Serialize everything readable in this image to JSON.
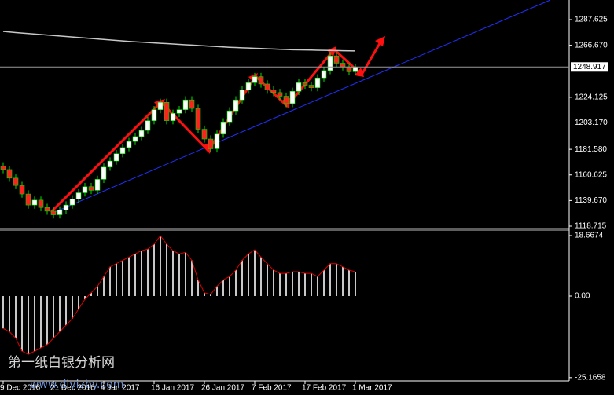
{
  "chart_data": [
    {
      "type": "candlestick",
      "categories": [
        "9 Dec 2016",
        null,
        null,
        null,
        null,
        null,
        null,
        null,
        "21 Dec 2016",
        null,
        null,
        null,
        null,
        null,
        null,
        null,
        "4 Jan 2017",
        null,
        null,
        null,
        null,
        null,
        null,
        null,
        "16 Jan 2017",
        null,
        null,
        null,
        null,
        null,
        null,
        null,
        "26 Jan 2017",
        null,
        null,
        null,
        null,
        null,
        null,
        null,
        "7 Feb 2017",
        null,
        null,
        null,
        null,
        null,
        null,
        null,
        "17 Feb 2017",
        null,
        null,
        null,
        null,
        null,
        null,
        null,
        "1 Mar 2017"
      ],
      "open": [
        1168,
        1165,
        1158,
        1152,
        1145,
        1136,
        1140,
        1134,
        1131,
        1128,
        1132,
        1136,
        1141,
        1146,
        1151,
        1148,
        1157,
        1167,
        1172,
        1178,
        1183,
        1188,
        1192,
        1197,
        1205,
        1214,
        1220,
        1205,
        1211,
        1214,
        1222,
        1215,
        1198,
        1190,
        1182,
        1194,
        1204,
        1213,
        1222,
        1230,
        1236,
        1241,
        1235,
        1230,
        1228,
        1225,
        1219,
        1229,
        1236,
        1234,
        1232,
        1240,
        1246,
        1258,
        1252,
        1249,
        1245
      ],
      "high": [
        1171,
        1168,
        1161,
        1155,
        1148,
        1143,
        1143,
        1137,
        1134,
        1135,
        1139,
        1144,
        1149,
        1154,
        1154,
        1160,
        1170,
        1175,
        1181,
        1186,
        1191,
        1195,
        1200,
        1208,
        1217,
        1223,
        1223,
        1214,
        1217,
        1225,
        1225,
        1218,
        1201,
        1193,
        1197,
        1207,
        1216,
        1225,
        1233,
        1239,
        1244,
        1244,
        1238,
        1233,
        1231,
        1228,
        1232,
        1239,
        1239,
        1237,
        1243,
        1249,
        1261,
        1261,
        1255,
        1252,
        1251
      ],
      "low": [
        1162,
        1155,
        1149,
        1142,
        1133,
        1133,
        1131,
        1128,
        1125,
        1125,
        1129,
        1133,
        1138,
        1143,
        1145,
        1145,
        1154,
        1164,
        1169,
        1175,
        1180,
        1185,
        1189,
        1194,
        1202,
        1211,
        1202,
        1202,
        1208,
        1211,
        1212,
        1195,
        1187,
        1179,
        1179,
        1191,
        1201,
        1210,
        1219,
        1227,
        1233,
        1232,
        1227,
        1225,
        1222,
        1216,
        1216,
        1226,
        1231,
        1229,
        1229,
        1237,
        1243,
        1249,
        1246,
        1242,
        1242
      ],
      "close": [
        1165,
        1158,
        1152,
        1145,
        1136,
        1140,
        1134,
        1131,
        1128,
        1132,
        1136,
        1141,
        1146,
        1151,
        1148,
        1157,
        1167,
        1172,
        1178,
        1183,
        1188,
        1192,
        1197,
        1205,
        1214,
        1220,
        1205,
        1211,
        1214,
        1222,
        1215,
        1198,
        1190,
        1182,
        1194,
        1204,
        1213,
        1222,
        1230,
        1236,
        1241,
        1235,
        1230,
        1228,
        1225,
        1219,
        1229,
        1236,
        1234,
        1232,
        1240,
        1246,
        1258,
        1252,
        1249,
        1245,
        1248.917
      ],
      "moving_average": {
        "color": "#c8c8c8",
        "values": [
          1278,
          1277.5,
          1277,
          1276.6,
          1276.2,
          1275.8,
          1275.4,
          1275,
          1274.6,
          1274.2,
          1273.8,
          1273.4,
          1273,
          1272.6,
          1272.2,
          1271.8,
          1271.4,
          1271,
          1270.6,
          1270.2,
          1269.8,
          1269.5,
          1269.2,
          1268.9,
          1268.6,
          1268.3,
          1268,
          1267.7,
          1267.4,
          1267.1,
          1266.8,
          1266.5,
          1266.2,
          1265.9,
          1265.6,
          1265.3,
          1265,
          1264.8,
          1264.6,
          1264.4,
          1264.2,
          1264,
          1263.8,
          1263.6,
          1263.4,
          1263.2,
          1263,
          1262.9,
          1262.8,
          1262.7,
          1262.6,
          1262.5,
          1262.4,
          1262.3,
          1262.2,
          1262.1,
          1262
        ]
      },
      "up_color": "#ffffff",
      "down_color": "#ff2020",
      "wick_color": "#00e000",
      "bid": 1248.917,
      "ylim": [
        1116.79,
        1303.68
      ],
      "yticks": [
        1287.625,
        {
          "value": 1266.67,
          "label": "1266.670"
        },
        1224.125,
        {
          "value": 1203.17,
          "label": "1203.170"
        },
        {
          "value": 1181.58,
          "label": "1181.580"
        },
        1160.625,
        {
          "value": 1139.67,
          "label": "1139.670"
        },
        1118.715
      ],
      "annotations": [
        "第一纸白银分析网",
        "www.diyizby.com"
      ]
    },
    {
      "type": "histogram_oscillator",
      "color": "#c8c8c8",
      "line_color": "#e00000",
      "values": [
        -10,
        -11,
        -13,
        -17,
        -18,
        -17,
        -16,
        -15,
        -13,
        -11,
        -9,
        -7,
        -4,
        -1,
        1,
        3,
        6,
        9,
        10,
        11,
        12,
        13,
        14,
        14.5,
        16,
        18.6,
        16,
        14,
        13,
        13.5,
        11,
        5,
        1,
        0.5,
        3,
        5,
        6,
        8,
        11,
        13,
        14.3,
        12,
        10,
        8,
        7,
        7,
        7.5,
        7.5,
        7,
        7,
        6,
        8,
        10,
        10,
        9,
        8,
        7.5
      ],
      "ylim": [
        -26.18,
        20.36
      ],
      "yticks": [
        18.6674,
        {
          "value": 0,
          "label": "0.00"
        },
        -25.1658
      ]
    }
  ]
}
